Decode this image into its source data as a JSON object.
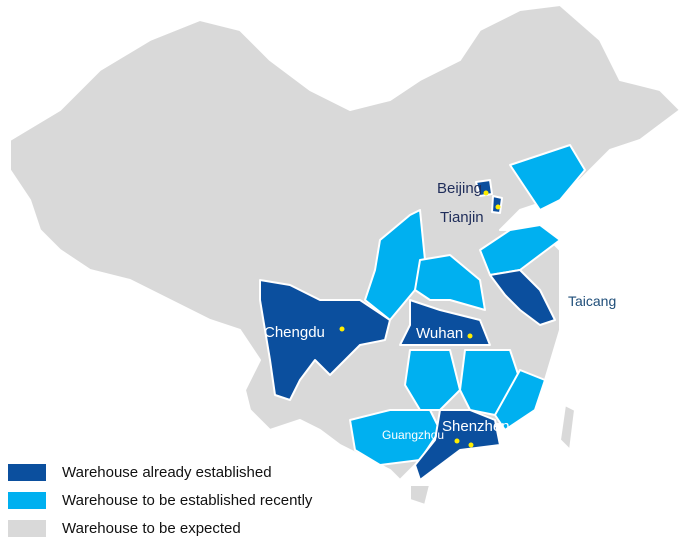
{
  "colors": {
    "established": "#0b4f9e",
    "recent": "#00b0f0",
    "expected": "#d9d9d9",
    "city_dot": "#ffee00",
    "border": "#ffffff"
  },
  "cities": [
    {
      "name": "Beijing",
      "status": "established"
    },
    {
      "name": "Tianjin",
      "status": "established"
    },
    {
      "name": "Taicang",
      "status": "established"
    },
    {
      "name": "Chengdu",
      "status": "established"
    },
    {
      "name": "Wuhan",
      "status": "established"
    },
    {
      "name": "Shenzhen",
      "status": "established"
    },
    {
      "name": "Guangzhou",
      "status": "established"
    }
  ],
  "legend": [
    {
      "label": "Warehouse already established",
      "status": "established"
    },
    {
      "label": "Warehouse to be established recently",
      "status": "recent"
    },
    {
      "label": "Warehouse to be expected",
      "status": "expected"
    }
  ]
}
